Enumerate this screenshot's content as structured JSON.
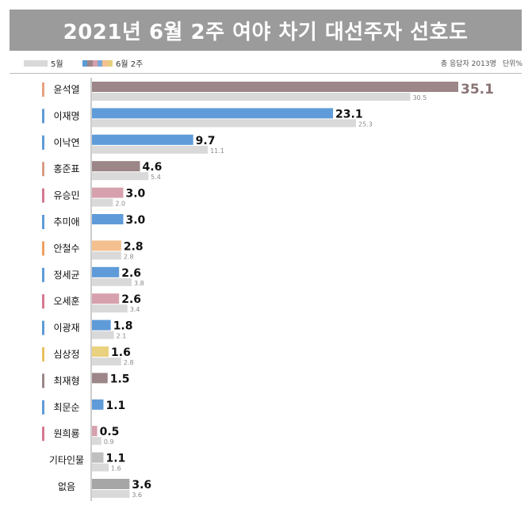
{
  "title": "2021년 6월 2주 여야 차기 대선주자 선호도",
  "legend": {
    "prev_label": "5월",
    "curr_label": "6월 2주",
    "respondents": "총 응답자 2013명",
    "unit": "단위%"
  },
  "colors": {
    "prev": "#d9d9d9",
    "axis": "#9a9a9a",
    "legend_stripes": [
      "#5b9bd5",
      "#9e8688",
      "#d4a0ac",
      "#7aa7d9",
      "#f5c08f",
      "#e7cf7d"
    ]
  },
  "chart_data": {
    "type": "bar",
    "orientation": "horizontal",
    "categories": [
      "윤석열",
      "이재명",
      "이낙연",
      "홍준표",
      "유승민",
      "추미애",
      "안철수",
      "정세균",
      "오세훈",
      "이광재",
      "심상정",
      "최재형",
      "최문순",
      "원희룡",
      "기타인물",
      "없음"
    ],
    "series": [
      {
        "name": "6월 2주",
        "values": [
          35.1,
          23.1,
          9.7,
          4.6,
          3.0,
          3.0,
          2.8,
          2.6,
          2.6,
          1.8,
          1.6,
          1.5,
          1.1,
          0.5,
          1.1,
          3.6
        ]
      },
      {
        "name": "5월",
        "values": [
          30.5,
          25.3,
          11.1,
          5.4,
          2.0,
          null,
          2.8,
          3.8,
          3.4,
          2.1,
          2.8,
          null,
          null,
          0.9,
          1.6,
          3.6
        ]
      }
    ],
    "bar_colors": [
      "#9c8688",
      "#5f9bd8",
      "#5f9bd8",
      "#9c8688",
      "#d6a1ad",
      "#5f9bd8",
      "#f5c08f",
      "#5f9bd8",
      "#d6a1ad",
      "#5f9bd8",
      "#e9d17f",
      "#9c8688",
      "#5f9bd8",
      "#d6a1ad",
      "#bfbfbf",
      "#a6a6a6"
    ],
    "marker_colors": [
      "#e8a07f",
      "#5f9bd8",
      "#5f9bd8",
      "#d99c83",
      "#d6788f",
      "#5f9bd8",
      "#f0a060",
      "#5f9bd8",
      "#d6788f",
      "#5f9bd8",
      "#e9c060",
      "#9c8688",
      "#5f9bd8",
      "#d6788f",
      null,
      null
    ],
    "xlim": [
      0,
      35.1
    ]
  }
}
